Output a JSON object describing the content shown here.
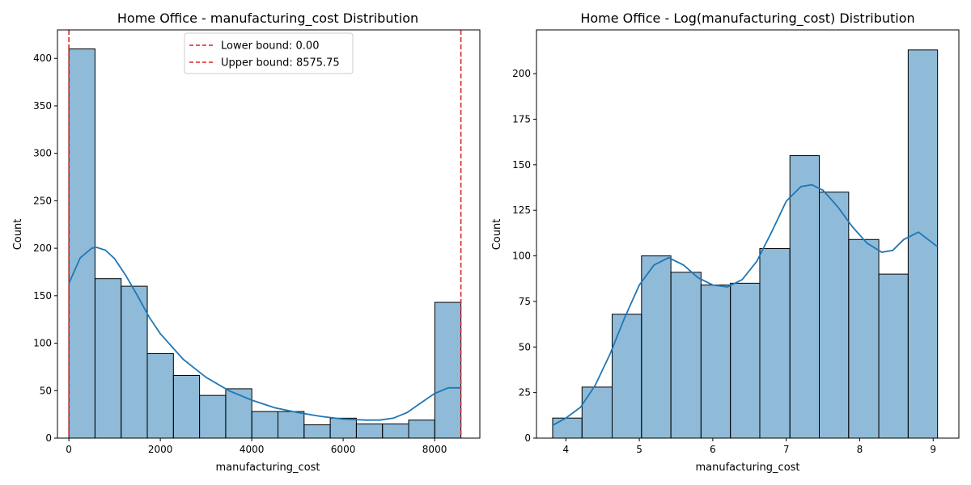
{
  "chart_data": [
    {
      "type": "bar",
      "title": "Home Office - manufacturing_cost Distribution",
      "xlabel": "manufacturing_cost",
      "ylabel": "Count",
      "xlim": [
        -250,
        8990
      ],
      "ylim": [
        0,
        430
      ],
      "xticks": [
        0,
        2000,
        4000,
        6000,
        8000
      ],
      "yticks": [
        0,
        50,
        100,
        150,
        200,
        250,
        300,
        350,
        400
      ],
      "bin_edges": [
        0,
        571.7,
        1143.4,
        1715.2,
        2286.9,
        2858.6,
        3430.3,
        4002.0,
        4573.7,
        5145.5,
        5717.2,
        6288.9,
        6860.6,
        7432.3,
        8004.0,
        8575.75
      ],
      "counts": [
        410,
        168,
        160,
        89,
        66,
        45,
        52,
        28,
        28,
        14,
        21,
        15,
        15,
        19,
        143
      ],
      "bar_color": "#1f77b4",
      "kde": {
        "color": "#1f77b4",
        "x": [
          0,
          250,
          500,
          600,
          800,
          1000,
          1250,
          1500,
          1750,
          2000,
          2500,
          3000,
          3500,
          4000,
          4500,
          5000,
          5500,
          6000,
          6500,
          6800,
          7100,
          7400,
          7700,
          8000,
          8300,
          8575
        ],
        "y": [
          163,
          190,
          200,
          201,
          198,
          189,
          171,
          150,
          128,
          110,
          83,
          64,
          50,
          40,
          32,
          27,
          23,
          20,
          19,
          19,
          21,
          27,
          37,
          47,
          53,
          53
        ]
      },
      "vlines": [
        {
          "x": 0.0,
          "color": "#d62728",
          "style": "dashed",
          "label": "Lower bound: 0.00"
        },
        {
          "x": 8575.75,
          "color": "#d62728",
          "style": "dashed",
          "label": "Upper bound: 8575.75"
        }
      ],
      "legend": "top-center",
      "grid": false
    },
    {
      "type": "bar",
      "title": "Home Office - Log(manufacturing_cost) Distribution",
      "xlabel": "manufacturing_cost",
      "ylabel": "Count",
      "xlim": [
        3.6,
        9.35
      ],
      "ylim": [
        0,
        224
      ],
      "xticks": [
        4,
        5,
        6,
        7,
        8,
        9
      ],
      "yticks": [
        0,
        25,
        50,
        75,
        100,
        125,
        150,
        175,
        200
      ],
      "bin_edges": [
        3.82,
        4.22,
        4.63,
        5.03,
        5.43,
        5.84,
        6.24,
        6.64,
        7.05,
        7.45,
        7.85,
        8.26,
        8.66,
        9.06
      ],
      "counts": [
        11,
        28,
        68,
        100,
        91,
        84,
        85,
        104,
        155,
        135,
        109,
        90,
        213
      ],
      "bar_color": "#1f77b4",
      "kde": {
        "color": "#1f77b4",
        "x": [
          3.82,
          4.0,
          4.2,
          4.4,
          4.6,
          4.8,
          5.0,
          5.2,
          5.4,
          5.6,
          5.8,
          6.0,
          6.2,
          6.4,
          6.6,
          6.8,
          7.0,
          7.2,
          7.35,
          7.5,
          7.7,
          7.9,
          8.1,
          8.3,
          8.45,
          8.6,
          8.8,
          9.06
        ],
        "y": [
          7,
          11,
          17,
          29,
          46,
          66,
          84,
          95,
          99,
          95,
          88,
          84,
          83,
          87,
          97,
          113,
          130,
          138,
          139,
          136,
          127,
          116,
          107,
          102,
          103,
          109,
          113,
          105
        ]
      },
      "grid": false
    }
  ]
}
